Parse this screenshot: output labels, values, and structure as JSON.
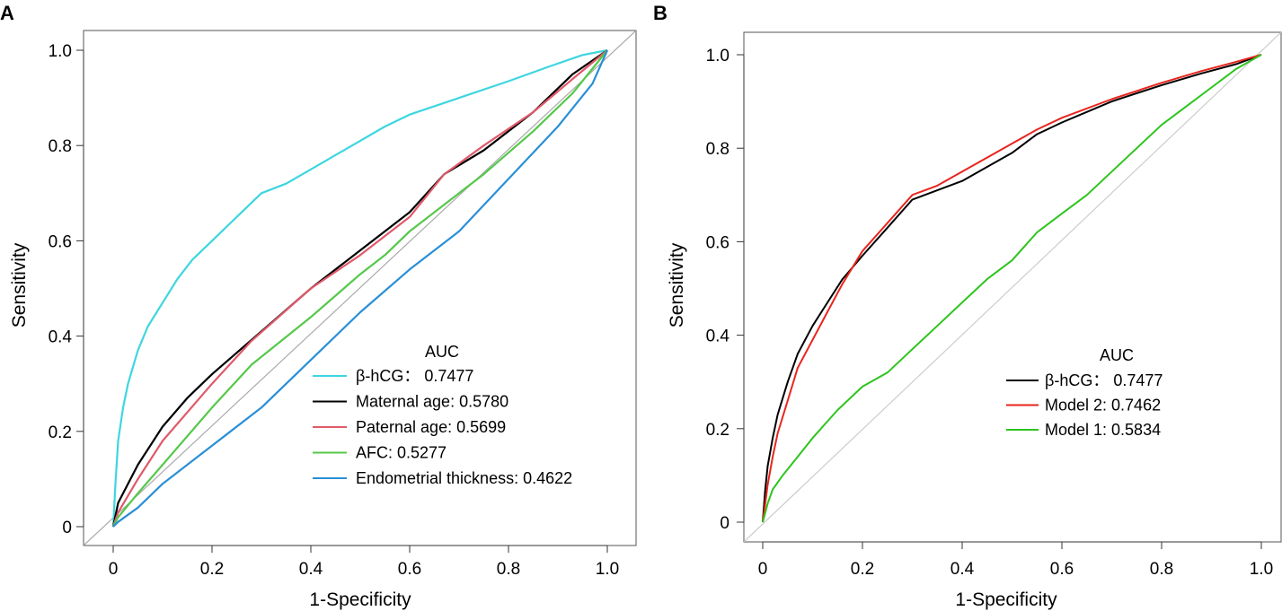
{
  "chart_data": [
    {
      "panel": "A",
      "type": "line",
      "xlabel": "1-Specificity",
      "ylabel": "Sensitivity",
      "xlim": [
        0,
        1
      ],
      "ylim": [
        0,
        1
      ],
      "xticks": [
        "0",
        "0.2",
        "0.4",
        "0.6",
        "0.8",
        "1.0"
      ],
      "yticks": [
        "0",
        "0.2",
        "0.4",
        "0.6",
        "0.8",
        "1.0"
      ],
      "legend_title": "AUC",
      "diagonal_color": "#aaaaaa",
      "series": [
        {
          "name": "β-hCG： 0.7477",
          "color": "#3dd6e0",
          "points": [
            [
              0,
              0
            ],
            [
              0.005,
              0.1
            ],
            [
              0.01,
              0.18
            ],
            [
              0.02,
              0.25
            ],
            [
              0.03,
              0.3
            ],
            [
              0.05,
              0.37
            ],
            [
              0.07,
              0.42
            ],
            [
              0.1,
              0.47
            ],
            [
              0.13,
              0.52
            ],
            [
              0.16,
              0.56
            ],
            [
              0.2,
              0.6
            ],
            [
              0.25,
              0.65
            ],
            [
              0.3,
              0.7
            ],
            [
              0.35,
              0.72
            ],
            [
              0.4,
              0.75
            ],
            [
              0.45,
              0.78
            ],
            [
              0.5,
              0.81
            ],
            [
              0.55,
              0.84
            ],
            [
              0.6,
              0.865
            ],
            [
              0.7,
              0.9
            ],
            [
              0.8,
              0.935
            ],
            [
              0.88,
              0.965
            ],
            [
              0.95,
              0.99
            ],
            [
              1,
              1
            ]
          ]
        },
        {
          "name": "Maternal age: 0.5780",
          "color": "#000000",
          "points": [
            [
              0,
              0
            ],
            [
              0.01,
              0.05
            ],
            [
              0.05,
              0.13
            ],
            [
              0.1,
              0.21
            ],
            [
              0.15,
              0.27
            ],
            [
              0.2,
              0.32
            ],
            [
              0.3,
              0.41
            ],
            [
              0.4,
              0.5
            ],
            [
              0.5,
              0.58
            ],
            [
              0.6,
              0.66
            ],
            [
              0.67,
              0.74
            ],
            [
              0.75,
              0.79
            ],
            [
              0.85,
              0.87
            ],
            [
              0.93,
              0.95
            ],
            [
              1,
              1
            ]
          ]
        },
        {
          "name": "Paternal age: 0.5699",
          "color": "#e05a6a",
          "points": [
            [
              0,
              0
            ],
            [
              0.01,
              0.03
            ],
            [
              0.05,
              0.1
            ],
            [
              0.1,
              0.18
            ],
            [
              0.2,
              0.3
            ],
            [
              0.28,
              0.39
            ],
            [
              0.4,
              0.5
            ],
            [
              0.5,
              0.57
            ],
            [
              0.6,
              0.65
            ],
            [
              0.67,
              0.74
            ],
            [
              0.75,
              0.8
            ],
            [
              0.85,
              0.87
            ],
            [
              0.93,
              0.94
            ],
            [
              1,
              1
            ]
          ]
        },
        {
          "name": "AFC: 0.5277",
          "color": "#55c84a",
          "points": [
            [
              0,
              0
            ],
            [
              0.01,
              0.02
            ],
            [
              0.05,
              0.07
            ],
            [
              0.1,
              0.13
            ],
            [
              0.2,
              0.25
            ],
            [
              0.28,
              0.34
            ],
            [
              0.4,
              0.44
            ],
            [
              0.5,
              0.53
            ],
            [
              0.55,
              0.57
            ],
            [
              0.6,
              0.62
            ],
            [
              0.7,
              0.7
            ],
            [
              0.75,
              0.74
            ],
            [
              0.85,
              0.83
            ],
            [
              0.93,
              0.91
            ],
            [
              1,
              1
            ]
          ]
        },
        {
          "name": "Endometrial thickness: 0.4622",
          "color": "#2a8fd6",
          "points": [
            [
              0,
              0
            ],
            [
              0.01,
              0.01
            ],
            [
              0.05,
              0.04
            ],
            [
              0.1,
              0.09
            ],
            [
              0.2,
              0.17
            ],
            [
              0.3,
              0.25
            ],
            [
              0.43,
              0.38
            ],
            [
              0.5,
              0.45
            ],
            [
              0.6,
              0.54
            ],
            [
              0.7,
              0.62
            ],
            [
              0.8,
              0.73
            ],
            [
              0.9,
              0.84
            ],
            [
              0.97,
              0.93
            ],
            [
              1,
              1
            ]
          ]
        }
      ]
    },
    {
      "panel": "B",
      "type": "line",
      "xlabel": "1-Specificity",
      "ylabel": "Sensitivity",
      "xlim": [
        0,
        1
      ],
      "ylim": [
        0,
        1
      ],
      "xticks": [
        "0",
        "0.2",
        "0.4",
        "0.6",
        "0.8",
        "1.0"
      ],
      "yticks": [
        "0",
        "0.2",
        "0.4",
        "0.6",
        "0.8",
        "1.0"
      ],
      "legend_title": "AUC",
      "diagonal_color": "#cccccc",
      "series": [
        {
          "name": "β-hCG： 0.7477",
          "color": "#000000",
          "points": [
            [
              0,
              0
            ],
            [
              0.005,
              0.07
            ],
            [
              0.01,
              0.12
            ],
            [
              0.02,
              0.18
            ],
            [
              0.03,
              0.23
            ],
            [
              0.05,
              0.3
            ],
            [
              0.07,
              0.36
            ],
            [
              0.1,
              0.42
            ],
            [
              0.13,
              0.47
            ],
            [
              0.16,
              0.52
            ],
            [
              0.2,
              0.57
            ],
            [
              0.25,
              0.63
            ],
            [
              0.3,
              0.69
            ],
            [
              0.35,
              0.71
            ],
            [
              0.4,
              0.73
            ],
            [
              0.45,
              0.76
            ],
            [
              0.5,
              0.79
            ],
            [
              0.55,
              0.83
            ],
            [
              0.6,
              0.855
            ],
            [
              0.7,
              0.9
            ],
            [
              0.8,
              0.935
            ],
            [
              0.88,
              0.96
            ],
            [
              0.95,
              0.98
            ],
            [
              1,
              1
            ]
          ]
        },
        {
          "name": "Model 2: 0.7462",
          "color": "#e8251e",
          "points": [
            [
              0,
              0
            ],
            [
              0.005,
              0.04
            ],
            [
              0.01,
              0.08
            ],
            [
              0.02,
              0.14
            ],
            [
              0.03,
              0.19
            ],
            [
              0.05,
              0.26
            ],
            [
              0.07,
              0.33
            ],
            [
              0.1,
              0.39
            ],
            [
              0.13,
              0.45
            ],
            [
              0.16,
              0.51
            ],
            [
              0.2,
              0.58
            ],
            [
              0.25,
              0.64
            ],
            [
              0.3,
              0.7
            ],
            [
              0.35,
              0.72
            ],
            [
              0.4,
              0.75
            ],
            [
              0.45,
              0.78
            ],
            [
              0.5,
              0.81
            ],
            [
              0.55,
              0.84
            ],
            [
              0.6,
              0.865
            ],
            [
              0.7,
              0.905
            ],
            [
              0.8,
              0.94
            ],
            [
              0.88,
              0.965
            ],
            [
              0.95,
              0.985
            ],
            [
              1,
              1
            ]
          ]
        },
        {
          "name": "Model 1: 0.5834",
          "color": "#2ec41e",
          "points": [
            [
              0,
              0
            ],
            [
              0.005,
              0.02
            ],
            [
              0.01,
              0.04
            ],
            [
              0.02,
              0.07
            ],
            [
              0.04,
              0.1
            ],
            [
              0.07,
              0.14
            ],
            [
              0.1,
              0.18
            ],
            [
              0.15,
              0.24
            ],
            [
              0.2,
              0.29
            ],
            [
              0.25,
              0.32
            ],
            [
              0.3,
              0.37
            ],
            [
              0.35,
              0.42
            ],
            [
              0.4,
              0.47
            ],
            [
              0.45,
              0.52
            ],
            [
              0.5,
              0.56
            ],
            [
              0.55,
              0.62
            ],
            [
              0.6,
              0.66
            ],
            [
              0.65,
              0.7
            ],
            [
              0.7,
              0.75
            ],
            [
              0.75,
              0.8
            ],
            [
              0.8,
              0.85
            ],
            [
              0.85,
              0.89
            ],
            [
              0.9,
              0.93
            ],
            [
              0.95,
              0.97
            ],
            [
              1,
              1
            ]
          ]
        }
      ]
    }
  ]
}
